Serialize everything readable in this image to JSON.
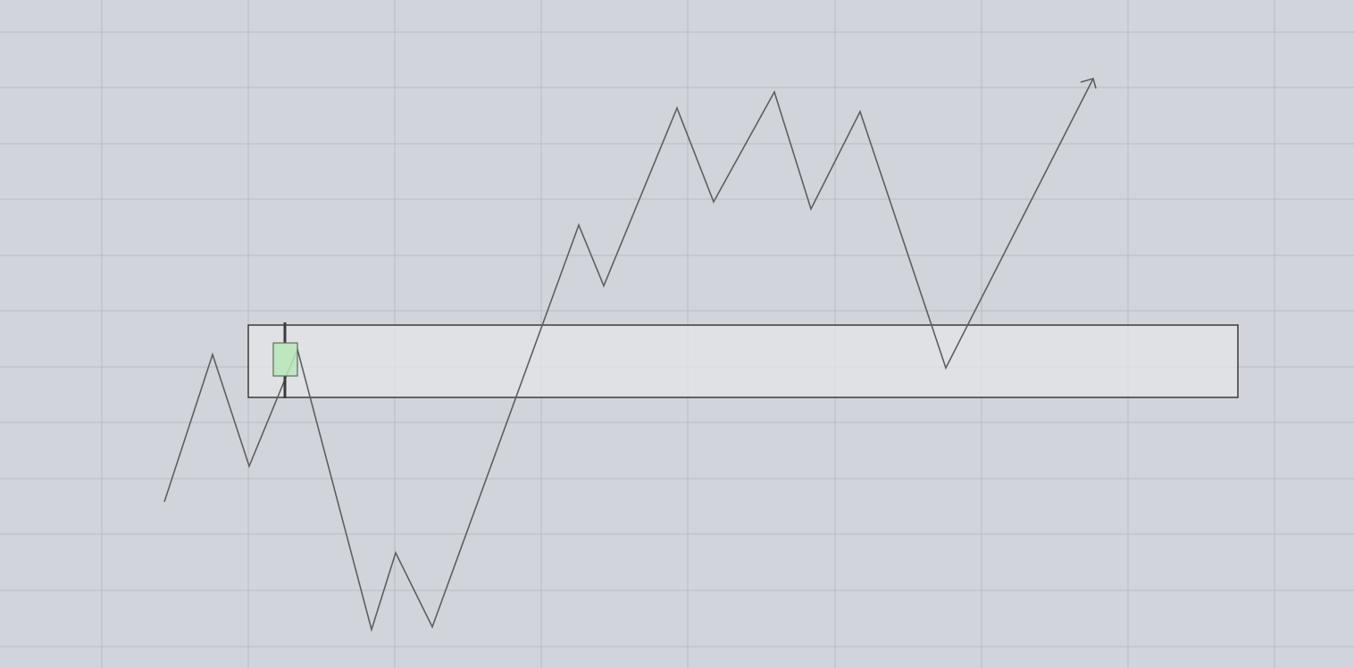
{
  "canvas": {
    "background": "#d1d4da",
    "grid_color": "#b9bcc4",
    "grid": true
  },
  "diagram": {
    "price_path": {
      "color": "#5f5f5f",
      "ends_with_arrow": true
    },
    "zone": {
      "fill": "#e3e4e7",
      "stroke": "#2f2f2f"
    },
    "candle": {
      "fill": "#b8e6b8",
      "stroke": "#5f6b5f",
      "wick_color": "#3a3a3a",
      "direction": "bullish"
    }
  }
}
